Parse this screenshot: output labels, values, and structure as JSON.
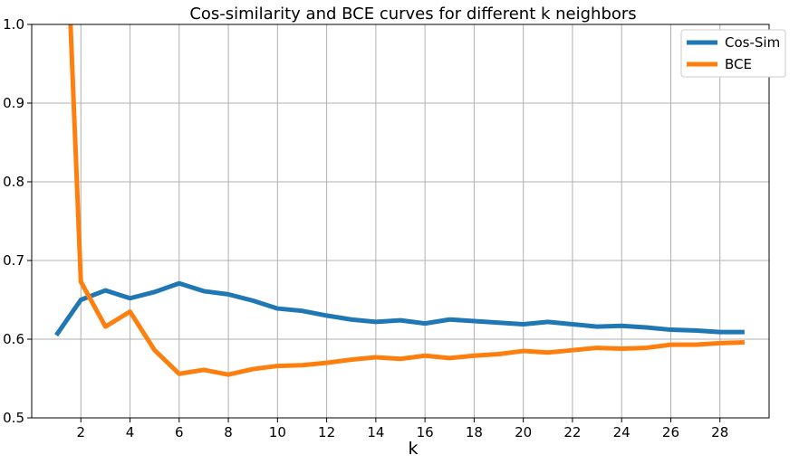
{
  "chart_data": {
    "type": "line",
    "title": "Cos-similarity and BCE curves for different k neighbors",
    "xlabel": "k",
    "ylabel": "",
    "xlim": [
      0.0,
      30.0
    ],
    "ylim": [
      0.5,
      1.0
    ],
    "xticks": [
      2,
      4,
      6,
      8,
      10,
      12,
      14,
      16,
      18,
      20,
      22,
      24,
      26,
      28
    ],
    "yticks": [
      0.5,
      0.6,
      0.7,
      0.8,
      0.9,
      1.0
    ],
    "ytick_labels": [
      "0.5",
      "0.6",
      "0.7",
      "0.8",
      "0.9",
      "1.0"
    ],
    "grid": true,
    "legend_position": "top-right",
    "x": [
      1,
      2,
      3,
      4,
      5,
      6,
      7,
      8,
      9,
      10,
      11,
      12,
      13,
      14,
      15,
      16,
      17,
      18,
      19,
      20,
      21,
      22,
      23,
      24,
      25,
      26,
      27,
      28,
      29
    ],
    "series": [
      {
        "name": "Cos-Sim",
        "color": "#1f77b4",
        "values": [
          0.605,
          0.65,
          0.662,
          0.652,
          0.66,
          0.671,
          0.661,
          0.657,
          0.649,
          0.639,
          0.636,
          0.63,
          0.625,
          0.622,
          0.624,
          0.62,
          0.625,
          0.623,
          0.621,
          0.619,
          0.622,
          0.619,
          0.616,
          0.617,
          0.615,
          0.612,
          0.611,
          0.609,
          0.609
        ]
      },
      {
        "name": "BCE",
        "color": "#ff7f0e",
        "values": [
          1.45,
          0.673,
          0.616,
          0.635,
          0.586,
          0.556,
          0.561,
          0.555,
          0.562,
          0.566,
          0.567,
          0.57,
          0.574,
          0.577,
          0.575,
          0.579,
          0.576,
          0.579,
          0.581,
          0.585,
          0.583,
          0.586,
          0.589,
          0.588,
          0.589,
          0.593,
          0.593,
          0.595,
          0.596
        ]
      }
    ]
  }
}
